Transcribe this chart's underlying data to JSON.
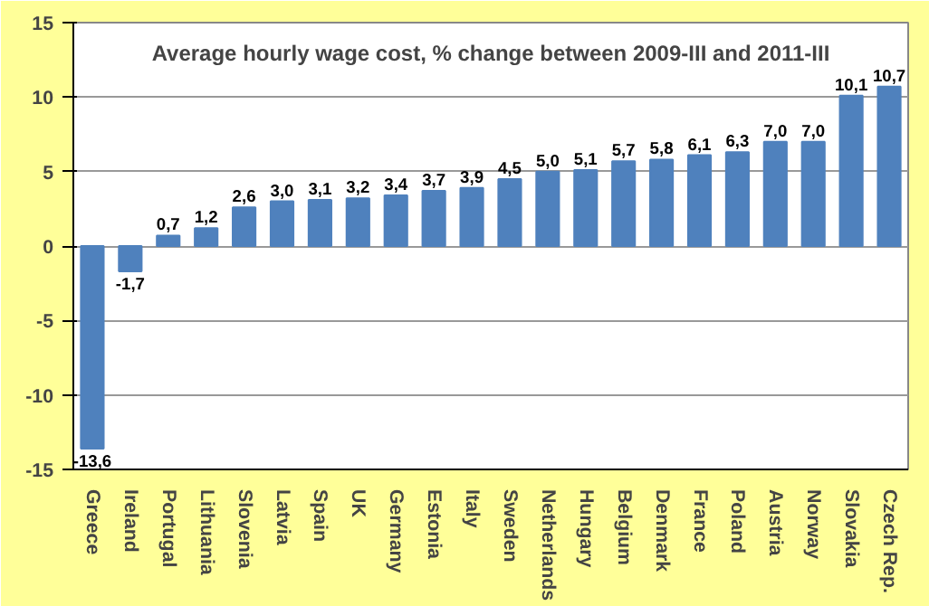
{
  "chart_data": {
    "type": "bar",
    "title": "Average hourly wage cost, % change between 2009-III and 2011-III",
    "categories": [
      "Greece",
      "Ireland",
      "Portugal",
      "Lithuania",
      "Slovenia",
      "Latvia",
      "Spain",
      "UK",
      "Germany",
      "Estonia",
      "Italy",
      "Sweden",
      "Netherlands",
      "Hungary",
      "Belgium",
      "Denmark",
      "France",
      "Poland",
      "Austria",
      "Norway",
      "Slovakia",
      "Czech Rep."
    ],
    "values": [
      -13.6,
      -1.7,
      0.7,
      1.2,
      2.6,
      3.0,
      3.1,
      3.2,
      3.4,
      3.7,
      3.9,
      4.5,
      5.0,
      5.1,
      5.7,
      5.8,
      6.1,
      6.3,
      7.0,
      7.0,
      10.1,
      10.7
    ],
    "value_labels": [
      "-13,6",
      "-1,7",
      "0,7",
      "1,2",
      "2,6",
      "3,0",
      "3,1",
      "3,2",
      "3,4",
      "3,7",
      "3,9",
      "4,5",
      "5,0",
      "5,1",
      "5,7",
      "5,8",
      "6,1",
      "6,3",
      "7,0",
      "7,0",
      "10,1",
      "10,7"
    ],
    "color": "#4f81bd",
    "ylim": [
      -15,
      15
    ],
    "yticks": [
      -15,
      -10,
      -5,
      0,
      5,
      10,
      15
    ],
    "grid": "y"
  }
}
